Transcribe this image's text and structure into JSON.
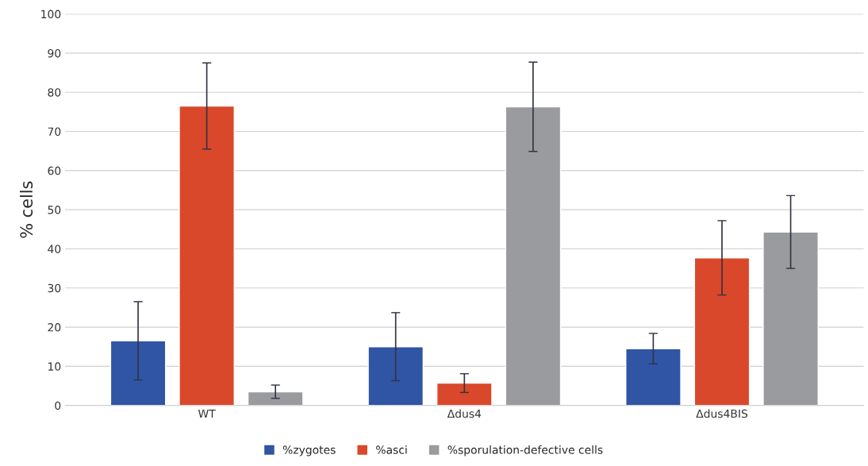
{
  "chart_data": {
    "type": "bar",
    "ylabel": "% cells",
    "categories": [
      "WT",
      "Δdus4",
      "Δdus4BIS"
    ],
    "series": [
      {
        "name": "%zygotes",
        "color": "#2f55a4",
        "values": [
          16.5,
          15,
          14.5
        ],
        "errors": [
          10,
          8.7,
          3.9
        ]
      },
      {
        "name": "%asci",
        "color": "#d9482b",
        "values": [
          76.5,
          5.7,
          37.7
        ],
        "errors": [
          11,
          2.4,
          9.5
        ]
      },
      {
        "name": "%sporulation-defective cells",
        "color": "#9a9b9e",
        "values": [
          3.5,
          76.3,
          44.3
        ],
        "errors": [
          1.7,
          11.4,
          9.3
        ]
      }
    ],
    "ylim": [
      0,
      100
    ],
    "yticks": [
      0,
      10,
      20,
      30,
      40,
      50,
      60,
      70,
      80,
      90,
      100
    ],
    "grid": "y",
    "legend": "bottom"
  }
}
